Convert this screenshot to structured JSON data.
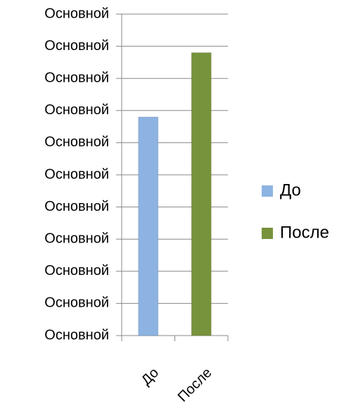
{
  "chart_data": {
    "type": "bar",
    "categories": [
      "До",
      "После"
    ],
    "series": [
      {
        "name": "До",
        "color": "#8db3e2",
        "values": [
          6.8,
          null
        ]
      },
      {
        "name": "После",
        "color": "#77933c",
        "values": [
          null,
          8.8
        ]
      }
    ],
    "ylim": [
      0,
      10
    ],
    "yticks": [
      {
        "value": 0,
        "label": "Основной"
      },
      {
        "value": 1,
        "label": "Основной"
      },
      {
        "value": 2,
        "label": "Основной"
      },
      {
        "value": 3,
        "label": "Основной"
      },
      {
        "value": 4,
        "label": "Основной"
      },
      {
        "value": 5,
        "label": "Основной"
      },
      {
        "value": 6,
        "label": "Основной"
      },
      {
        "value": 7,
        "label": "Основной"
      },
      {
        "value": 8,
        "label": "Основной"
      },
      {
        "value": 9,
        "label": "Основной"
      },
      {
        "value": 10,
        "label": "Основной"
      }
    ],
    "grid": true,
    "legend": "right"
  }
}
